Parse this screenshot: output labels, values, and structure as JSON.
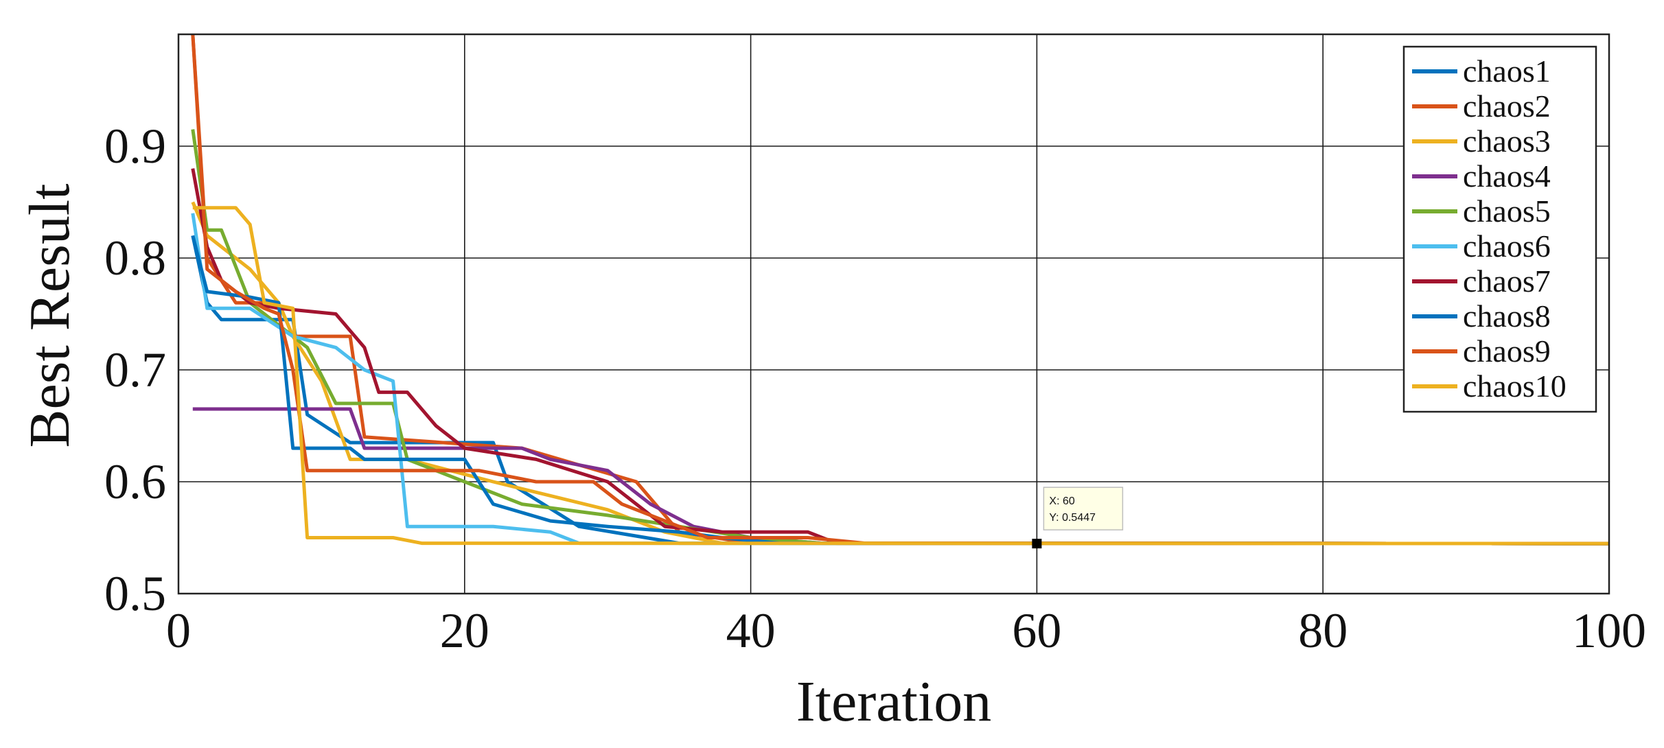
{
  "chart_data": {
    "type": "line",
    "xlabel": "Iteration",
    "ylabel": "Best Result",
    "xlim": [
      0,
      100
    ],
    "ylim": [
      0.5,
      1.0
    ],
    "xticks": [
      "0",
      "20",
      "40",
      "60",
      "80",
      "100"
    ],
    "yticks": [
      "0.5",
      "0.6",
      "0.7",
      "0.8",
      "0.9"
    ],
    "grid": true,
    "legend_position": "top-right",
    "series": [
      {
        "name": "chaos1",
        "color": "#0072BD",
        "points": [
          [
            1,
            0.82
          ],
          [
            2,
            0.76
          ],
          [
            3,
            0.745
          ],
          [
            8,
            0.745
          ],
          [
            9,
            0.66
          ],
          [
            12,
            0.635
          ],
          [
            22,
            0.635
          ],
          [
            23,
            0.6
          ],
          [
            28,
            0.56
          ],
          [
            35,
            0.545
          ],
          [
            100,
            0.5447
          ]
        ]
      },
      {
        "name": "chaos2",
        "color": "#D95319",
        "points": [
          [
            1,
            1.0
          ],
          [
            1.5,
            0.9
          ],
          [
            2,
            0.8
          ],
          [
            3,
            0.78
          ],
          [
            4,
            0.76
          ],
          [
            7,
            0.76
          ],
          [
            8,
            0.73
          ],
          [
            12,
            0.73
          ],
          [
            13,
            0.64
          ],
          [
            24,
            0.63
          ],
          [
            32,
            0.6
          ],
          [
            35,
            0.555
          ],
          [
            40,
            0.545
          ],
          [
            100,
            0.5447
          ]
        ]
      },
      {
        "name": "chaos3",
        "color": "#EDB120",
        "points": [
          [
            1,
            0.85
          ],
          [
            2,
            0.82
          ],
          [
            5,
            0.79
          ],
          [
            7,
            0.76
          ],
          [
            8,
            0.73
          ],
          [
            10,
            0.69
          ],
          [
            12,
            0.62
          ],
          [
            16,
            0.62
          ],
          [
            22,
            0.6
          ],
          [
            30,
            0.575
          ],
          [
            34,
            0.555
          ],
          [
            38,
            0.545
          ],
          [
            100,
            0.5447
          ]
        ]
      },
      {
        "name": "chaos4",
        "color": "#7E2F8E",
        "points": [
          [
            1,
            0.665
          ],
          [
            12,
            0.665
          ],
          [
            13,
            0.63
          ],
          [
            24,
            0.63
          ],
          [
            26,
            0.62
          ],
          [
            30,
            0.61
          ],
          [
            33,
            0.58
          ],
          [
            36,
            0.56
          ],
          [
            40,
            0.55
          ],
          [
            45,
            0.545
          ],
          [
            100,
            0.5447
          ]
        ]
      },
      {
        "name": "chaos5",
        "color": "#77AC30",
        "points": [
          [
            1,
            0.915
          ],
          [
            2,
            0.825
          ],
          [
            3,
            0.825
          ],
          [
            5,
            0.76
          ],
          [
            9,
            0.72
          ],
          [
            11,
            0.67
          ],
          [
            15,
            0.67
          ],
          [
            16,
            0.62
          ],
          [
            20,
            0.6
          ],
          [
            24,
            0.58
          ],
          [
            30,
            0.57
          ],
          [
            35,
            0.56
          ],
          [
            40,
            0.55
          ],
          [
            45,
            0.545
          ],
          [
            100,
            0.5447
          ]
        ]
      },
      {
        "name": "chaos6",
        "color": "#4DBEEE",
        "points": [
          [
            1,
            0.84
          ],
          [
            2,
            0.755
          ],
          [
            5,
            0.755
          ],
          [
            8,
            0.73
          ],
          [
            11,
            0.72
          ],
          [
            13,
            0.7
          ],
          [
            15,
            0.69
          ],
          [
            16,
            0.56
          ],
          [
            22,
            0.56
          ],
          [
            26,
            0.555
          ],
          [
            28,
            0.545
          ],
          [
            100,
            0.5447
          ]
        ]
      },
      {
        "name": "chaos7",
        "color": "#A2142F",
        "points": [
          [
            1,
            0.88
          ],
          [
            2,
            0.81
          ],
          [
            3,
            0.78
          ],
          [
            5,
            0.76
          ],
          [
            7,
            0.755
          ],
          [
            11,
            0.75
          ],
          [
            13,
            0.72
          ],
          [
            14,
            0.68
          ],
          [
            16,
            0.68
          ],
          [
            18,
            0.65
          ],
          [
            20,
            0.63
          ],
          [
            25,
            0.62
          ],
          [
            30,
            0.6
          ],
          [
            34,
            0.56
          ],
          [
            38,
            0.555
          ],
          [
            44,
            0.555
          ],
          [
            46,
            0.545
          ],
          [
            100,
            0.5447
          ]
        ]
      },
      {
        "name": "chaos8",
        "color": "#0072BD",
        "points": [
          [
            1,
            0.82
          ],
          [
            2,
            0.77
          ],
          [
            5,
            0.765
          ],
          [
            7,
            0.76
          ],
          [
            8,
            0.63
          ],
          [
            12,
            0.63
          ],
          [
            13,
            0.62
          ],
          [
            20,
            0.62
          ],
          [
            22,
            0.58
          ],
          [
            26,
            0.565
          ],
          [
            30,
            0.56
          ],
          [
            35,
            0.555
          ],
          [
            38,
            0.55
          ],
          [
            42,
            0.545
          ],
          [
            100,
            0.5447
          ]
        ]
      },
      {
        "name": "chaos9",
        "color": "#D95319",
        "points": [
          [
            1,
            1.0
          ],
          [
            2,
            0.79
          ],
          [
            4,
            0.77
          ],
          [
            6,
            0.755
          ],
          [
            7,
            0.75
          ],
          [
            8,
            0.7
          ],
          [
            9,
            0.61
          ],
          [
            21,
            0.61
          ],
          [
            25,
            0.6
          ],
          [
            29,
            0.6
          ],
          [
            31,
            0.58
          ],
          [
            34,
            0.565
          ],
          [
            37,
            0.55
          ],
          [
            44,
            0.55
          ],
          [
            48,
            0.545
          ],
          [
            100,
            0.5447
          ]
        ]
      },
      {
        "name": "chaos10",
        "color": "#EDB120",
        "points": [
          [
            1,
            0.845
          ],
          [
            4,
            0.845
          ],
          [
            5,
            0.83
          ],
          [
            6,
            0.76
          ],
          [
            8,
            0.755
          ],
          [
            9,
            0.55
          ],
          [
            15,
            0.55
          ],
          [
            17,
            0.545
          ],
          [
            100,
            0.5447
          ]
        ]
      }
    ],
    "datatip": {
      "x": 60,
      "y": 0.5447,
      "label_x": "X: 60",
      "label_y": "Y: 0.5447"
    }
  }
}
